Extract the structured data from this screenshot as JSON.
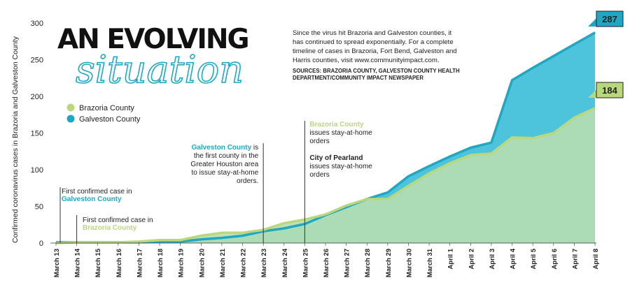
{
  "title": {
    "line1": "AN EVOLVING",
    "line2": "situation"
  },
  "intro": {
    "lines": [
      "Since the virus hit Brazoria and Galveston counties, it",
      "has continued to spread exponentially. For a complete",
      "timeline of cases in Brazoria, Fort Bend, Galveston and",
      "Harris counties, visit www.communityimpact.com."
    ],
    "sources": [
      "SOURCES: BRAZORIA COUNTY, GALVESTON COUNTY HEALTH",
      "DEPARTMENT/COMMUNITY IMPACT NEWSPAPER"
    ]
  },
  "colors": {
    "brazoria": "#b9d77c",
    "galveston": "#1fa8c4",
    "brazoria_fill": "#b7dfb0",
    "galveston_fill": "#4dc3dc"
  },
  "chart_data": {
    "type": "area",
    "ylabel": "Confirmed coronavirus cases in Brazoria and Galveston County",
    "xlabel": "",
    "ylim": [
      0,
      300
    ],
    "yticks": [
      0,
      50,
      100,
      150,
      200,
      250,
      300
    ],
    "categories": [
      "March 13",
      "March 14",
      "March 15",
      "March 16",
      "March 17",
      "March 18",
      "March 19",
      "March 20",
      "March 21",
      "March 22",
      "March 23",
      "March 24",
      "March 25",
      "March 26",
      "March 27",
      "March 28",
      "March 29",
      "March 30",
      "March 31",
      "April 1",
      "April 2",
      "April 3",
      "April 4",
      "April 5",
      "April 6",
      "April 7",
      "April 8"
    ],
    "series": [
      {
        "name": "Brazoria County",
        "values": [
          0,
          1,
          1,
          1,
          2,
          4,
          4,
          10,
          14,
          14,
          18,
          27,
          32,
          39,
          51,
          60,
          60,
          78,
          95,
          109,
          120,
          122,
          144,
          143,
          150,
          171,
          184
        ]
      },
      {
        "name": "Galveston County",
        "values": [
          1,
          1,
          1,
          1,
          1,
          2,
          2,
          5,
          7,
          10,
          16,
          20,
          26,
          38,
          49,
          60,
          69,
          91,
          105,
          118,
          130,
          137,
          222,
          239,
          255,
          271,
          287
        ]
      }
    ],
    "end_labels": [
      "184",
      "287"
    ],
    "legend": [
      "Brazoria County",
      "Galveston County"
    ],
    "legend_position": "top-left",
    "grid": false
  },
  "annotations": [
    {
      "category": "March 13",
      "lines": [
        {
          "text": "First confirmed case in",
          "style": "plain"
        },
        {
          "text": "Galveston County",
          "style": "galveston"
        }
      ]
    },
    {
      "category": "March 14",
      "lines": [
        {
          "text": "First confirmed case in",
          "style": "plain"
        },
        {
          "text": "Brazoria County",
          "style": "brazoria"
        }
      ]
    },
    {
      "category": "March 23",
      "lines": [
        {
          "text": [
            {
              "t": "Galveston County",
              "s": "galveston"
            },
            {
              "t": " is",
              "s": "plain"
            }
          ]
        },
        {
          "text": [
            {
              "t": "the first county in the",
              "s": "plain"
            }
          ]
        },
        {
          "text": [
            {
              "t": "Greater Houston area",
              "s": "plain"
            }
          ]
        },
        {
          "text": [
            {
              "t": "to issue stay-at-home",
              "s": "plain"
            }
          ]
        },
        {
          "text": [
            {
              "t": "orders.",
              "s": "plain"
            }
          ]
        }
      ]
    },
    {
      "category": "March 25",
      "lines": [
        {
          "text": "Brazoria County",
          "style": "brazoria"
        },
        {
          "text": "issues stay-at-home",
          "style": "plain"
        },
        {
          "text": "orders",
          "style": "plain"
        },
        {
          "text": "",
          "style": "plain"
        },
        {
          "text": "City of Pearland",
          "style": "bold"
        },
        {
          "text": "issues stay-at-home",
          "style": "plain"
        },
        {
          "text": "orders",
          "style": "plain"
        }
      ]
    }
  ]
}
